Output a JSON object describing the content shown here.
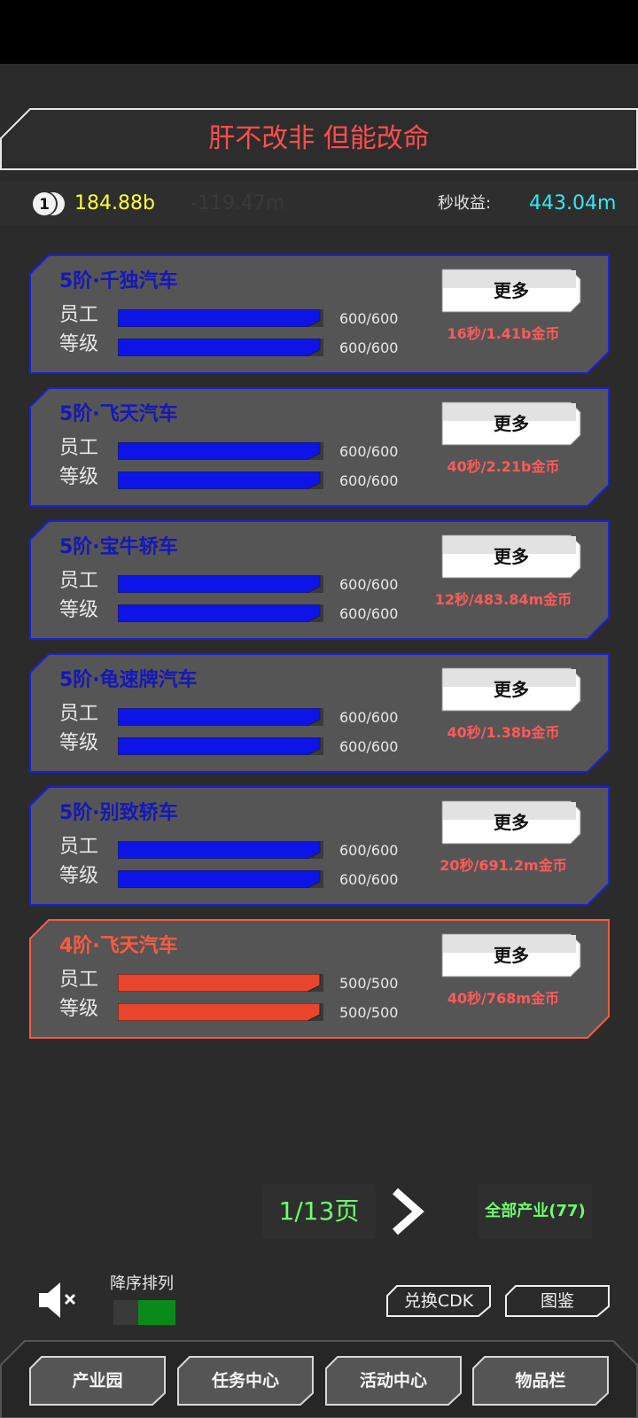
{
  "banner": {
    "title": "肝不改非 但能改命"
  },
  "stats": {
    "coin_icon": "coin-1-icon",
    "coin_label": "1",
    "coins": "184.88b",
    "faded_value": "-119.47m",
    "income_label": "秒收益:",
    "income_value": "443.04m"
  },
  "cards": [
    {
      "title": "5阶·千独汽车",
      "staff_label": "员工",
      "staff_value": "600/600",
      "level_label": "等级",
      "level_value": "600/600",
      "more": "更多",
      "rate": "16秒/1.41b金币",
      "theme": "blue",
      "staff_progress": 1.0,
      "level_progress": 1.0
    },
    {
      "title": "5阶·飞天汽车",
      "staff_label": "员工",
      "staff_value": "600/600",
      "level_label": "等级",
      "level_value": "600/600",
      "more": "更多",
      "rate": "40秒/2.21b金币",
      "theme": "blue",
      "staff_progress": 1.0,
      "level_progress": 1.0
    },
    {
      "title": "5阶·宝牛轿车",
      "staff_label": "员工",
      "staff_value": "600/600",
      "level_label": "等级",
      "level_value": "600/600",
      "more": "更多",
      "rate": "12秒/483.84m金币",
      "theme": "blue",
      "staff_progress": 1.0,
      "level_progress": 1.0
    },
    {
      "title": "5阶·龟速牌汽车",
      "staff_label": "员工",
      "staff_value": "600/600",
      "level_label": "等级",
      "level_value": "600/600",
      "more": "更多",
      "rate": "40秒/1.38b金币",
      "theme": "blue",
      "staff_progress": 1.0,
      "level_progress": 1.0
    },
    {
      "title": "5阶·别致轿车",
      "staff_label": "员工",
      "staff_value": "600/600",
      "level_label": "等级",
      "level_value": "600/600",
      "more": "更多",
      "rate": "20秒/691.2m金币",
      "theme": "blue",
      "staff_progress": 1.0,
      "level_progress": 1.0
    },
    {
      "title": "4阶·飞天汽车",
      "staff_label": "员工",
      "staff_value": "500/500",
      "level_label": "等级",
      "level_value": "500/500",
      "more": "更多",
      "rate": "40秒/768m金币",
      "theme": "red",
      "staff_progress": 1.0,
      "level_progress": 1.0
    }
  ],
  "pagination": {
    "page": "1/13页",
    "next_icon": "chevron-right-icon",
    "all_industries": "全部产业(77)"
  },
  "controls": {
    "sound_icon": "speaker-muted-icon",
    "sort_label": "降序排列",
    "cdk_button": "兑换CDK",
    "gallery_button": "图鉴"
  },
  "nav": {
    "industry_park": "产业园",
    "task_center": "任务中心",
    "event_center": "活动中心",
    "inventory": "物品栏"
  },
  "colors": {
    "blue_accent": "#1a20e0",
    "blue_title": "#1518b8",
    "red_accent": "#ff5a3c",
    "income": "#35e9f0",
    "coins": "#ffff3b",
    "page": "#6cff6c"
  }
}
